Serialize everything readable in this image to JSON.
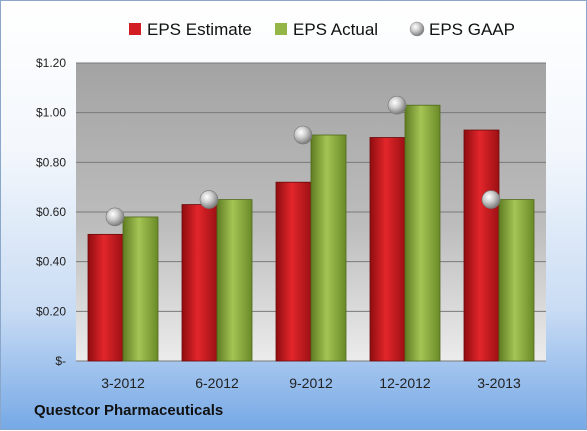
{
  "company_label": "Questcor Pharmaceuticals",
  "chart_data": {
    "type": "bar",
    "categories": [
      "3-2012",
      "6-2012",
      "9-2012",
      "12-2012",
      "3-2013"
    ],
    "series": [
      {
        "name": "EPS Estimate",
        "kind": "bar",
        "color": "#c0171b",
        "values": [
          0.51,
          0.63,
          0.72,
          0.9,
          0.93
        ]
      },
      {
        "name": "EPS Actual",
        "kind": "bar",
        "color": "#86a83c",
        "values": [
          0.58,
          0.65,
          0.91,
          1.03,
          0.65
        ]
      },
      {
        "name": "EPS GAAP",
        "kind": "scatter",
        "color": "#b4b4b4",
        "values": [
          0.58,
          0.65,
          0.91,
          1.03,
          0.65
        ]
      }
    ],
    "ylim": [
      0,
      1.2
    ],
    "yticks": [
      0,
      0.2,
      0.4,
      0.6,
      0.8,
      1.0,
      1.2
    ],
    "ytick_labels": [
      "$-",
      "$0.20",
      "$0.40",
      "$0.60",
      "$0.80",
      "$1.00",
      "$1.20"
    ],
    "legend_position": "top",
    "grid": true
  }
}
